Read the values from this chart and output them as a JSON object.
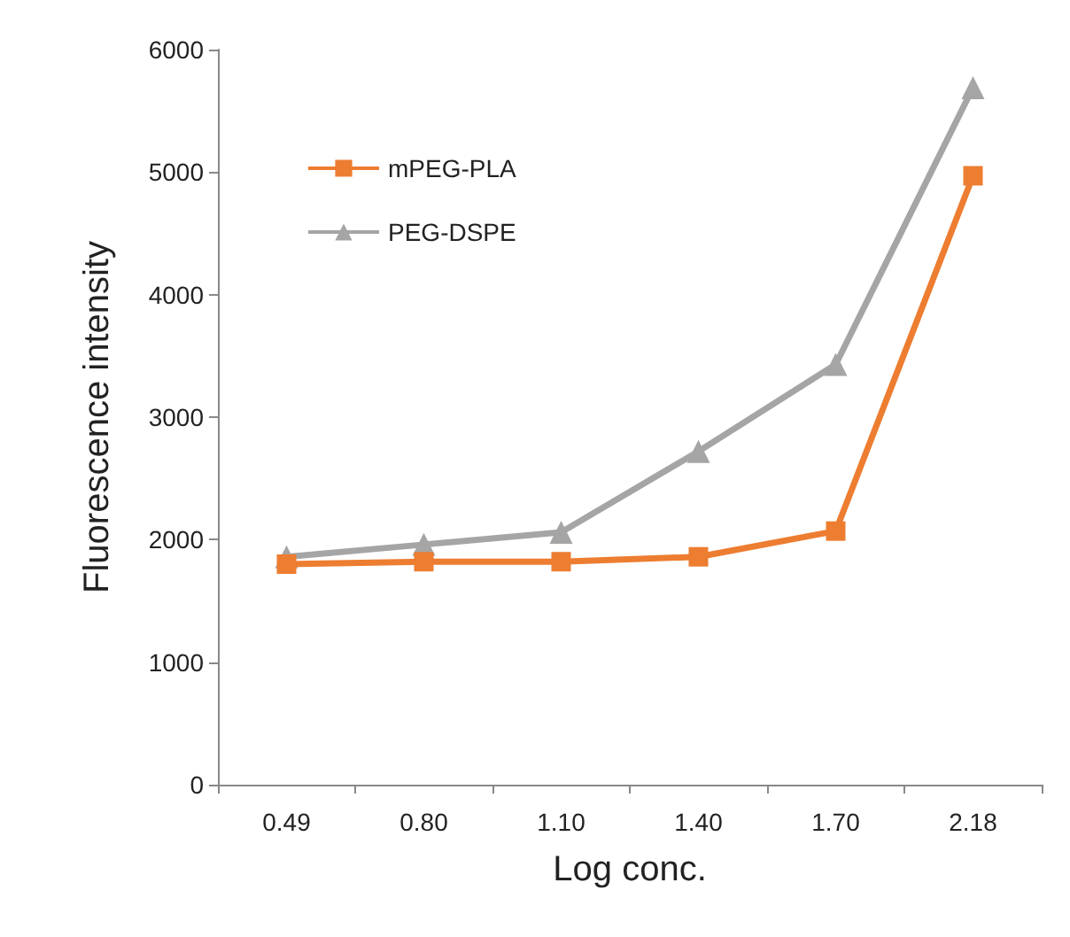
{
  "chart_data": {
    "type": "line",
    "xlabel": "Log conc.",
    "ylabel": "Fluorescence intensity",
    "categories": [
      "0.49",
      "0.80",
      "1.10",
      "1.40",
      "1.70",
      "2.18"
    ],
    "series": [
      {
        "name": "mPEG-PLA",
        "color": "#ed7d31",
        "marker": "square",
        "values": [
          1800,
          1820,
          1820,
          1860,
          2070,
          4970
        ]
      },
      {
        "name": "PEG-DSPE",
        "color": "#a5a5a5",
        "marker": "triangle",
        "values": [
          1860,
          1960,
          2060,
          2720,
          3430,
          5690
        ]
      }
    ],
    "ylim": [
      0,
      6000
    ],
    "yticks": [
      0,
      1000,
      2000,
      3000,
      4000,
      5000,
      6000
    ],
    "grid": false,
    "legend": "top left"
  }
}
